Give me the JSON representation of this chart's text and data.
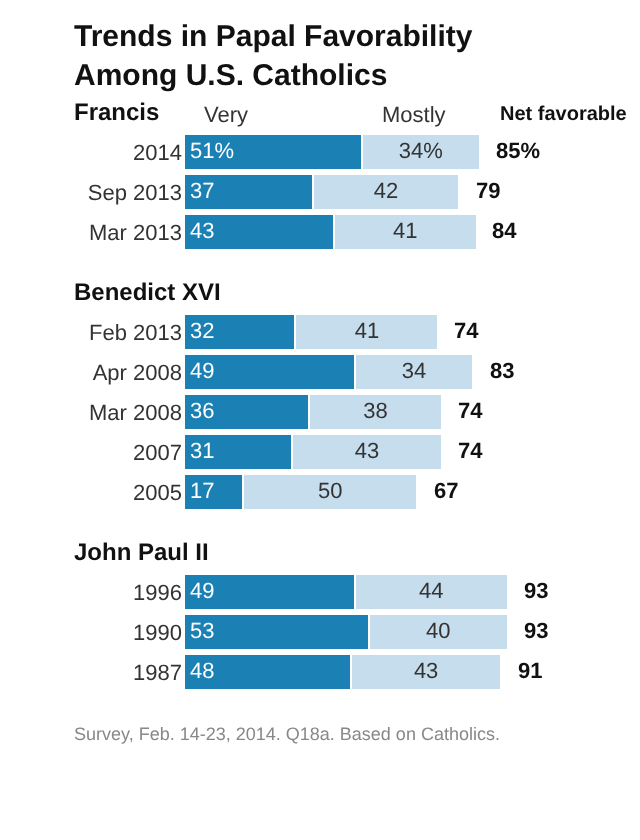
{
  "chart_data": [
    {
      "type": "bar",
      "orientation": "horizontal",
      "stacked": true,
      "title": "Trends in Papal Favorability Among U.S. Catholics",
      "subtitle": "Francis",
      "categories": [
        "2014",
        "Sep 2013",
        "Mar 2013"
      ],
      "series": [
        {
          "name": "Very",
          "color": "#1b80b4",
          "values": [
            51,
            37,
            43
          ],
          "value_labels": [
            "51%",
            "37",
            "43"
          ]
        },
        {
          "name": "Mostly",
          "color": "#c6ddee",
          "values": [
            34,
            42,
            41
          ],
          "value_labels": [
            "34%",
            "42",
            "41"
          ]
        }
      ],
      "totals": [
        "85%",
        "79",
        "84"
      ],
      "annotations": [
        "Net favorable"
      ],
      "tick_labels": "y"
    },
    {
      "type": "bar",
      "orientation": "horizontal",
      "stacked": true,
      "subtitle": "Benedict XVI",
      "categories": [
        "Feb 2013",
        "Apr 2008",
        "Mar 2008",
        "2007",
        "2005"
      ],
      "series": [
        {
          "color": "#1b80b4",
          "values": [
            32,
            49,
            36,
            31,
            17
          ],
          "value_labels": [
            "32",
            "49",
            "36",
            "31",
            "17"
          ]
        },
        {
          "color": "#c6ddee",
          "values": [
            41,
            34,
            38,
            43,
            50
          ],
          "value_labels": [
            "41",
            "34",
            "38",
            "43",
            "50"
          ]
        }
      ],
      "totals": [
        "74",
        "83",
        "74",
        "74",
        "67"
      ],
      "tick_labels": "y"
    },
    {
      "type": "bar",
      "orientation": "horizontal",
      "stacked": true,
      "subtitle": "John Paul II",
      "categories": [
        "1996",
        "1990",
        "1987"
      ],
      "series": [
        {
          "color": "#1b80b4",
          "values": [
            49,
            53,
            48
          ],
          "value_labels": [
            "49",
            "53",
            "48"
          ]
        },
        {
          "color": "#c6ddee",
          "values": [
            44,
            40,
            43
          ],
          "value_labels": [
            "44",
            "40",
            "43"
          ]
        }
      ],
      "totals": [
        "93",
        "93",
        "91"
      ],
      "annotations": [
        "Survey, Feb. 14-23, 2014. Q18a. Based on Catholics."
      ],
      "tick_labels": "y"
    }
  ]
}
